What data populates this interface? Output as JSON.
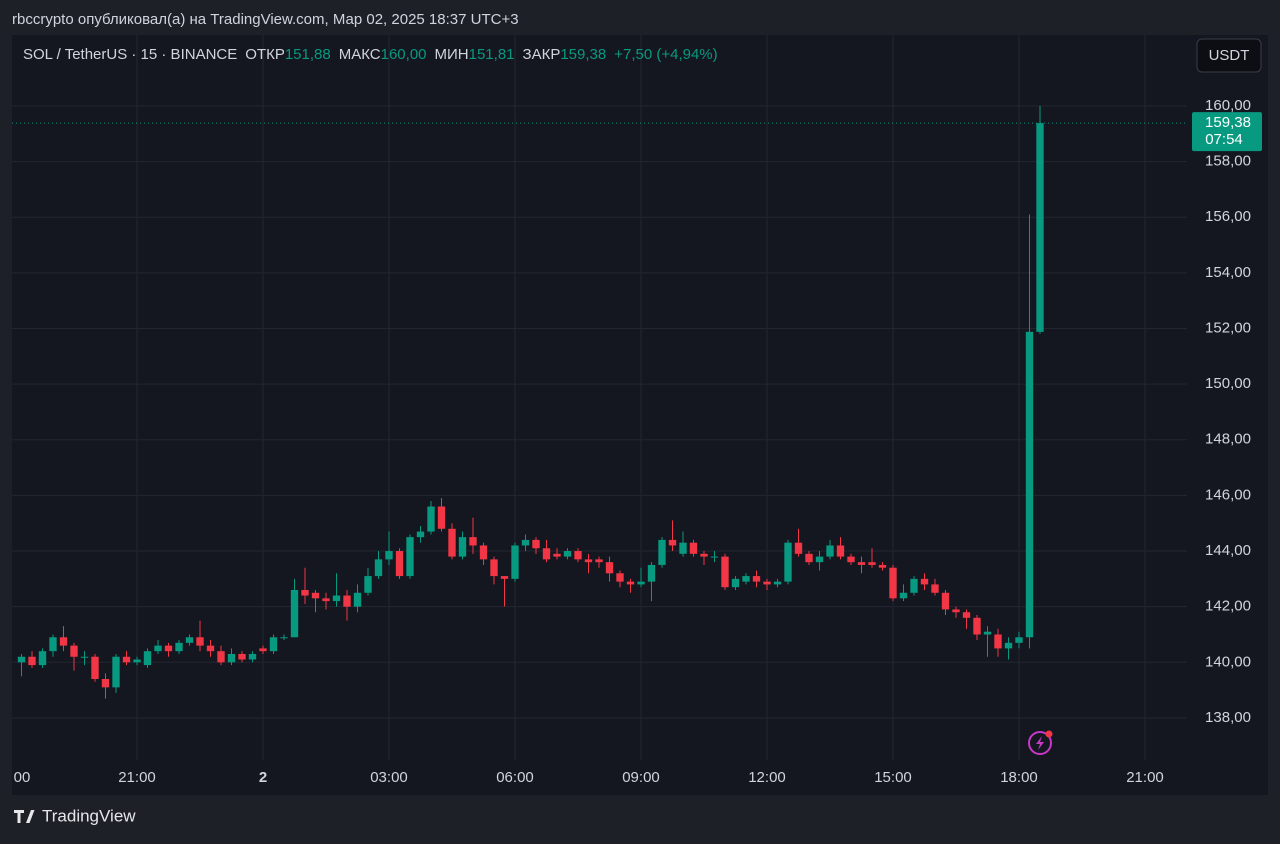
{
  "header": {
    "publisher": "rbccrypto опубликовал(а) на TradingView.com, Мар 02, 2025 18:37 UTC+3"
  },
  "footer": {
    "logo": "TradingView"
  },
  "currency_button": "USDT",
  "chart_data": {
    "type": "candlestick",
    "symbol": "SOL / TetherUS · 15 · BINANCE",
    "ohlc_labels": [
      {
        "name": "ОТКР",
        "value": "151,88"
      },
      {
        "name": "МАКС",
        "value": "160,00"
      },
      {
        "name": "МИН",
        "value": "151,81"
      },
      {
        "name": "ЗАКР",
        "value": "159,38"
      }
    ],
    "change": "+7,50 (+4,94%)",
    "last_price": {
      "value": 159.38,
      "label": "159,38"
    },
    "countdown": "07:54",
    "up_color": "#089981",
    "down_color": "#f23645",
    "grid": true,
    "xlim": [
      18,
      46
    ],
    "ylim": [
      135.23,
      162.55
    ],
    "xticks": [
      {
        "value": 18,
        "label": "00"
      },
      {
        "value": 21,
        "label": "21:00"
      },
      {
        "value": 24,
        "label": "2"
      },
      {
        "value": 27,
        "label": "03:00"
      },
      {
        "value": 30,
        "label": "06:00"
      },
      {
        "value": 33,
        "label": "09:00"
      },
      {
        "value": 36,
        "label": "12:00"
      },
      {
        "value": 39,
        "label": "15:00"
      },
      {
        "value": 42,
        "label": "18:00"
      },
      {
        "value": 45,
        "label": "21:00"
      }
    ],
    "yticks": [
      {
        "value": 138,
        "label": "138,00"
      },
      {
        "value": 140,
        "label": "140,00"
      },
      {
        "value": 142,
        "label": "142,00"
      },
      {
        "value": 144,
        "label": "144,00"
      },
      {
        "value": 146,
        "label": "146,00"
      },
      {
        "value": 148,
        "label": "148,00"
      },
      {
        "value": 150,
        "label": "150,00"
      },
      {
        "value": 152,
        "label": "152,00"
      },
      {
        "value": 154,
        "label": "154,00"
      },
      {
        "value": 156,
        "label": "156,00"
      },
      {
        "value": 158,
        "label": "158,00"
      },
      {
        "value": 160,
        "label": "160,00"
      }
    ],
    "x": [
      18.25,
      18.5,
      18.75,
      19,
      19.25,
      19.5,
      19.75,
      20,
      20.25,
      20.5,
      20.75,
      21,
      21.25,
      21.5,
      21.75,
      22,
      22.25,
      22.5,
      22.75,
      23,
      23.25,
      23.5,
      23.75,
      24,
      24.25,
      24.5,
      24.75,
      25,
      25.25,
      25.5,
      25.75,
      26,
      26.25,
      26.5,
      26.75,
      27,
      27.25,
      27.5,
      27.75,
      28,
      28.25,
      28.5,
      28.75,
      29,
      29.25,
      29.5,
      29.75,
      30,
      30.25,
      30.5,
      30.75,
      31,
      31.25,
      31.5,
      31.75,
      32,
      32.25,
      32.5,
      32.75,
      33,
      33.25,
      33.5,
      33.75,
      34,
      34.25,
      34.5,
      34.75,
      35,
      35.25,
      35.5,
      35.75,
      36,
      36.25,
      36.5,
      36.75,
      37,
      37.25,
      37.5,
      37.75,
      38,
      38.25,
      38.5,
      38.75,
      39,
      39.25,
      39.5,
      39.75,
      40,
      40.25,
      40.5,
      40.75,
      41,
      41.25,
      41.5,
      41.75,
      42,
      42.25,
      42.5
    ],
    "open": [
      140.0,
      140.2,
      139.9,
      140.4,
      140.9,
      140.6,
      140.2,
      140.2,
      139.4,
      139.1,
      140.2,
      140.0,
      139.9,
      140.4,
      140.6,
      140.4,
      140.7,
      140.9,
      140.6,
      140.4,
      140.0,
      140.3,
      140.1,
      140.5,
      140.4,
      140.9,
      140.9,
      142.6,
      142.5,
      142.3,
      142.2,
      142.4,
      142.0,
      142.5,
      143.1,
      143.7,
      144.0,
      143.1,
      144.5,
      144.7,
      145.6,
      144.8,
      143.8,
      144.5,
      144.2,
      143.7,
      143.1,
      143.0,
      144.2,
      144.4,
      144.1,
      143.9,
      143.8,
      144.0,
      143.7,
      143.7,
      143.6,
      143.2,
      142.9,
      142.8,
      142.9,
      143.5,
      144.4,
      143.9,
      144.3,
      143.9,
      143.8,
      143.8,
      142.7,
      142.9,
      143.1,
      142.9,
      142.8,
      142.9,
      144.3,
      143.9,
      143.6,
      143.8,
      144.2,
      143.8,
      143.6,
      143.6,
      143.5,
      143.4,
      142.3,
      142.5,
      143.0,
      142.8,
      142.5,
      141.9,
      141.8,
      141.6,
      141.0,
      141.0,
      140.5,
      140.7,
      140.9,
      151.88
    ],
    "high": [
      140.3,
      140.4,
      140.5,
      141.0,
      141.3,
      140.7,
      140.4,
      140.3,
      139.6,
      140.3,
      140.4,
      140.2,
      140.5,
      140.8,
      140.7,
      140.8,
      141.0,
      141.5,
      140.8,
      140.6,
      140.5,
      140.4,
      140.4,
      140.6,
      141.0,
      141.0,
      143.0,
      143.4,
      142.6,
      142.5,
      143.2,
      142.6,
      142.8,
      143.4,
      144.0,
      144.7,
      144.1,
      144.6,
      144.9,
      145.8,
      145.9,
      145.0,
      144.7,
      145.2,
      144.3,
      143.8,
      143.1,
      144.3,
      144.6,
      144.5,
      144.4,
      144.1,
      144.1,
      144.1,
      143.9,
      143.8,
      143.8,
      143.3,
      143.0,
      143.4,
      143.6,
      144.5,
      145.1,
      144.7,
      144.4,
      144.0,
      144.0,
      143.9,
      143.1,
      143.2,
      143.3,
      143.0,
      143.0,
      144.4,
      144.8,
      144.0,
      144.0,
      144.4,
      144.5,
      143.9,
      143.8,
      144.1,
      143.6,
      143.5,
      142.8,
      143.1,
      143.2,
      143.0,
      142.6,
      142.0,
      141.9,
      141.7,
      141.3,
      141.2,
      140.9,
      141.1,
      156.1,
      160.0
    ],
    "low": [
      139.5,
      139.8,
      139.8,
      140.2,
      140.4,
      139.7,
      139.9,
      139.3,
      138.7,
      138.9,
      139.9,
      139.9,
      139.8,
      140.3,
      140.2,
      140.3,
      140.6,
      140.4,
      140.2,
      139.9,
      139.9,
      140.0,
      140.0,
      140.3,
      140.3,
      140.8,
      140.9,
      142.1,
      141.8,
      141.9,
      142.0,
      141.5,
      141.8,
      142.4,
      143.0,
      143.5,
      143.0,
      143.0,
      144.3,
      144.6,
      144.7,
      143.7,
      143.7,
      143.9,
      143.5,
      142.8,
      142.0,
      142.9,
      144.0,
      143.9,
      143.6,
      143.7,
      143.7,
      143.6,
      143.2,
      143.4,
      142.9,
      142.7,
      142.5,
      142.7,
      142.2,
      143.4,
      144.0,
      143.8,
      143.8,
      143.5,
      143.6,
      142.6,
      142.6,
      142.8,
      142.7,
      142.6,
      142.7,
      142.8,
      143.8,
      143.5,
      143.3,
      143.7,
      143.7,
      143.5,
      143.2,
      143.4,
      143.3,
      142.2,
      142.2,
      142.4,
      142.6,
      142.4,
      141.7,
      141.6,
      141.2,
      140.8,
      140.2,
      140.2,
      140.1,
      140.5,
      140.5,
      151.81
    ],
    "close": [
      140.2,
      139.9,
      140.4,
      140.9,
      140.6,
      140.2,
      140.2,
      139.4,
      139.1,
      140.2,
      140.0,
      140.1,
      140.4,
      140.6,
      140.4,
      140.7,
      140.9,
      140.6,
      140.4,
      140.0,
      140.3,
      140.1,
      140.3,
      140.4,
      140.9,
      140.9,
      142.6,
      142.4,
      142.3,
      142.2,
      142.4,
      142.0,
      142.5,
      143.1,
      143.7,
      144.0,
      143.1,
      144.5,
      144.7,
      145.6,
      144.8,
      143.8,
      144.5,
      144.2,
      143.7,
      143.1,
      143.0,
      144.2,
      144.4,
      144.1,
      143.7,
      143.8,
      144.0,
      143.7,
      143.6,
      143.6,
      143.2,
      142.9,
      142.8,
      142.9,
      143.5,
      144.4,
      144.2,
      144.3,
      143.9,
      143.8,
      143.8,
      142.7,
      143.0,
      143.1,
      142.9,
      142.8,
      142.9,
      144.3,
      143.9,
      143.6,
      143.8,
      144.2,
      143.8,
      143.6,
      143.5,
      143.5,
      143.4,
      142.3,
      142.5,
      143.0,
      142.8,
      142.5,
      141.9,
      141.8,
      141.6,
      141.0,
      141.1,
      140.5,
      140.7,
      140.9,
      151.88,
      159.38
    ]
  }
}
